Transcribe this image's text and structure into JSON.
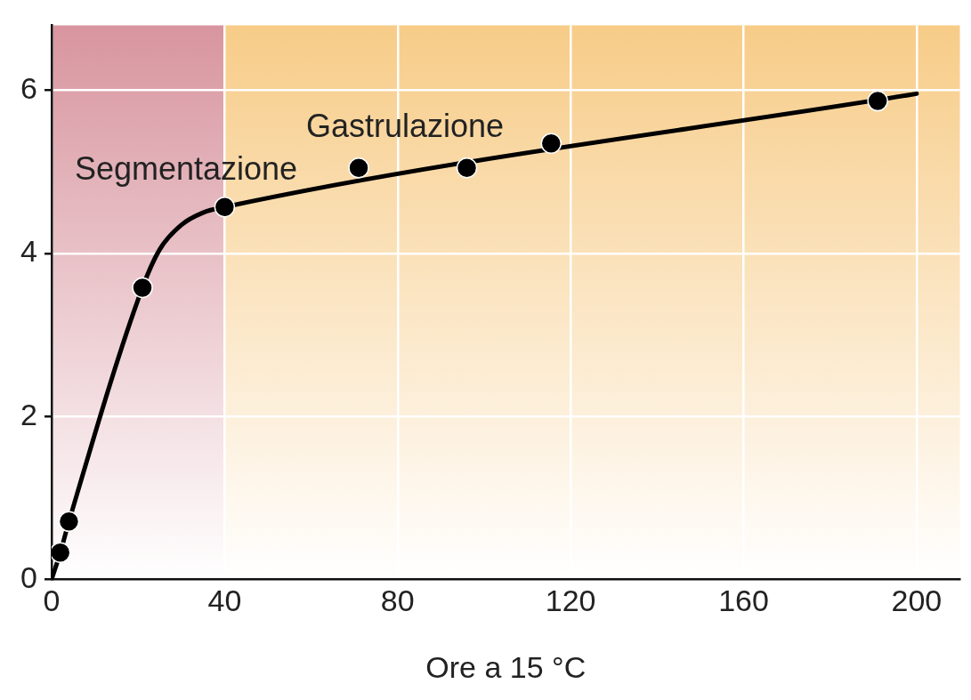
{
  "chart_data": {
    "type": "scatter",
    "xlabel": "Ore a 15 °C",
    "xlim": [
      0,
      210
    ],
    "xticks": [
      0,
      40,
      80,
      120,
      160,
      200
    ],
    "ylim": [
      0,
      6.8
    ],
    "yticks": [
      0,
      2,
      4,
      6
    ],
    "grid": true,
    "marker": "circle",
    "series": [
      {
        "type": "line",
        "color": "#000000",
        "x": [
          0,
          2,
          4,
          21,
          25,
          30,
          35,
          40,
          200
        ],
        "values": [
          0,
          0.33,
          0.71,
          3.58,
          4.05,
          4.35,
          4.5,
          4.57,
          5.96
        ],
        "marker": "none"
      },
      {
        "type": "scatter",
        "color": "#000000",
        "x": [
          2,
          4,
          21,
          40,
          71,
          96,
          115.5,
          191
        ],
        "values": [
          0.33,
          0.71,
          3.58,
          4.57,
          5.05,
          5.05,
          5.35,
          5.87
        ]
      }
    ],
    "bands": [
      {
        "axis": "x",
        "from": 0,
        "to": 40,
        "color": "#d8959f"
      },
      {
        "axis": "x",
        "from": 40,
        "to": 210,
        "color": "#f7cc88"
      }
    ],
    "annotations": [
      "Segmentazione",
      "Gastrulazione"
    ]
  }
}
